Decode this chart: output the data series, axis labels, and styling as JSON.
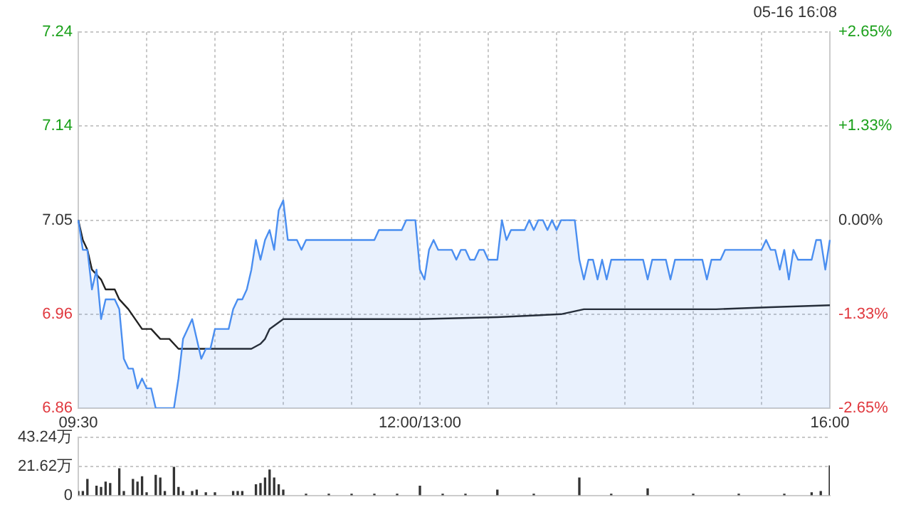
{
  "chart_data": [
    {
      "type": "line",
      "annotations": [
        "05-16 16:08"
      ],
      "categories": [
        "09:30",
        null,
        null,
        null,
        null,
        null,
        null,
        null,
        null,
        null,
        null,
        null,
        null,
        null,
        null,
        null,
        null,
        null,
        null,
        null,
        null,
        null,
        null,
        null,
        null,
        null,
        null,
        null,
        null,
        null,
        null,
        null,
        null,
        null,
        null,
        null,
        null,
        null,
        null,
        null,
        null,
        null,
        null,
        null,
        null,
        null,
        null,
        null,
        null,
        null,
        null,
        null,
        null,
        null,
        null,
        null,
        null,
        null,
        null,
        null,
        null,
        null,
        null,
        null,
        null,
        null,
        null,
        null,
        null,
        null,
        null,
        null,
        null,
        null,
        null,
        "12:00/13:00",
        null,
        null,
        null,
        null,
        null,
        null,
        null,
        null,
        null,
        null,
        null,
        null,
        null,
        null,
        null,
        null,
        null,
        null,
        null,
        null,
        null,
        null,
        null,
        null,
        null,
        null,
        null,
        null,
        null,
        null,
        null,
        null,
        null,
        null,
        null,
        null,
        null,
        null,
        null,
        null,
        null,
        null,
        null,
        null,
        null,
        null,
        null,
        null,
        null,
        null,
        null,
        null,
        null,
        null,
        null,
        null,
        null,
        null,
        null,
        null,
        null,
        null,
        null,
        null,
        null,
        null,
        null,
        null,
        null,
        null,
        null,
        null,
        null,
        null,
        null,
        null,
        null,
        null,
        null,
        null,
        null,
        null,
        null,
        null,
        null,
        null,
        null,
        null,
        null,
        "16:00"
      ],
      "ylim": [
        6.86,
        7.24
      ],
      "yticks": [
        6.86,
        {
          "value": 6.955,
          "label": "6.96"
        },
        7.05,
        {
          "value": 7.145,
          "label": "7.14"
        },
        7.24
      ],
      "y2lim": [
        -2.65,
        2.65
      ],
      "y2ticks": [
        {
          "value": -2.65,
          "label": "-2.65%"
        },
        {
          "value": -1.33,
          "label": "-1.33%"
        },
        {
          "value": 0,
          "label": "0.00%"
        },
        {
          "value": 1.33,
          "label": "+1.33%"
        },
        {
          "value": 2.65,
          "label": "+2.65%"
        }
      ],
      "grid": true,
      "series": [
        {
          "type": "area",
          "color": "#4a8ef0",
          "values": [
            7.05,
            7.02,
            7.02,
            6.98,
            7.0,
            6.95,
            6.97,
            6.97,
            6.97,
            6.96,
            6.91,
            6.9,
            6.9,
            6.88,
            6.89,
            6.88,
            6.88,
            6.86,
            6.86,
            6.86,
            6.86,
            6.86,
            6.89,
            6.93,
            6.94,
            6.95,
            6.93,
            6.91,
            6.92,
            6.92,
            6.94,
            6.94,
            6.94,
            6.94,
            6.96,
            6.97,
            6.97,
            6.98,
            7.0,
            7.03,
            7.01,
            7.03,
            7.04,
            7.02,
            7.06,
            7.07,
            7.03,
            7.03,
            7.03,
            7.02,
            7.03,
            7.03,
            7.03,
            7.03,
            7.03,
            7.03,
            7.03,
            7.03,
            7.03,
            7.03,
            7.03,
            7.03,
            7.03,
            7.03,
            7.03,
            7.03,
            7.04,
            7.04,
            7.04,
            7.04,
            7.04,
            7.04,
            7.05,
            7.05,
            7.05,
            7.0,
            6.99,
            7.02,
            7.03,
            7.02,
            7.02,
            7.02,
            7.02,
            7.01,
            7.02,
            7.02,
            7.01,
            7.01,
            7.02,
            7.02,
            7.01,
            7.01,
            7.01,
            7.05,
            7.03,
            7.04,
            7.04,
            7.04,
            7.04,
            7.05,
            7.04,
            7.05,
            7.05,
            7.04,
            7.05,
            7.04,
            7.05,
            7.05,
            7.05,
            7.05,
            7.01,
            6.99,
            7.01,
            7.01,
            6.99,
            7.01,
            6.99,
            7.01,
            7.01,
            7.01,
            7.01,
            7.01,
            7.01,
            7.01,
            7.01,
            6.99,
            7.01,
            7.01,
            7.01,
            7.01,
            6.99,
            7.01,
            7.01,
            7.01,
            7.01,
            7.01,
            7.01,
            7.01,
            6.99,
            7.01,
            7.01,
            7.01,
            7.02,
            7.02,
            7.02,
            7.02,
            7.02,
            7.02,
            7.02,
            7.02,
            7.02,
            7.03,
            7.02,
            7.02,
            7.0,
            7.02,
            6.99,
            7.02,
            7.01,
            7.01,
            7.01,
            7.01,
            7.03,
            7.03,
            7.0,
            7.03
          ]
        },
        {
          "type": "line",
          "color": "#222222",
          "values": [
            7.05,
            7.03,
            7.02,
            7.0,
            null,
            6.99,
            6.98,
            null,
            6.98,
            6.97,
            null,
            6.96,
            null,
            null,
            6.94,
            null,
            6.94,
            null,
            6.93,
            null,
            6.93,
            null,
            6.92,
            null,
            null,
            6.92,
            null,
            null,
            null,
            null,
            null,
            null,
            null,
            null,
            6.92,
            null,
            null,
            null,
            6.92,
            null,
            6.925,
            6.93,
            6.94,
            null,
            null,
            6.95,
            null,
            null,
            null,
            null,
            null,
            null,
            null,
            null,
            null,
            null,
            null,
            null,
            null,
            null,
            null,
            6.95,
            null,
            null,
            null,
            null,
            null,
            null,
            null,
            null,
            null,
            null,
            null,
            null,
            null,
            6.95,
            null,
            null,
            null,
            null,
            null,
            null,
            null,
            null,
            null,
            null,
            null,
            null,
            null,
            null,
            null,
            null,
            6.952,
            null,
            null,
            null,
            null,
            null,
            null,
            null,
            null,
            null,
            null,
            null,
            null,
            null,
            6.955,
            null,
            null,
            null,
            null,
            6.96,
            null,
            null,
            null,
            null,
            null,
            null,
            null,
            null,
            null,
            null,
            null,
            null,
            null,
            null,
            6.96,
            null,
            null,
            null,
            null,
            null,
            null,
            null,
            null,
            null,
            null,
            null,
            null,
            null,
            6.96,
            null,
            null,
            null,
            null,
            null,
            null,
            null,
            null,
            null,
            null,
            null,
            6.962,
            null,
            null,
            null,
            null,
            null,
            null,
            null,
            null,
            null,
            null,
            null,
            null,
            6.964
          ]
        }
      ]
    },
    {
      "type": "bar",
      "tick_labels": "y",
      "grid": "y",
      "categories": [
        null,
        null,
        null,
        null,
        null,
        null,
        null,
        null,
        null,
        null,
        null,
        null,
        null,
        null,
        null,
        null,
        null,
        null,
        null,
        null,
        null,
        null,
        null,
        null,
        null,
        null,
        null,
        null,
        null,
        null,
        null,
        null,
        null,
        null,
        null,
        null,
        null,
        null,
        null,
        null,
        null,
        null,
        null,
        null,
        null,
        null,
        null,
        null,
        null,
        null,
        null,
        null,
        null,
        null,
        null,
        null,
        null,
        null,
        null,
        null,
        null,
        null,
        null,
        null,
        null,
        null,
        null,
        null,
        null,
        null,
        null,
        null,
        null,
        null,
        null,
        null,
        null,
        null,
        null,
        null,
        null,
        null,
        null,
        null,
        null,
        null,
        null,
        null,
        null,
        null,
        null,
        null,
        null,
        null,
        null,
        null,
        null,
        null,
        null,
        null,
        null,
        null,
        null,
        null,
        null,
        null,
        null,
        null,
        null,
        null,
        null,
        null,
        null,
        null,
        null,
        null,
        null,
        null,
        null,
        null,
        null,
        null,
        null,
        null,
        null,
        null,
        null,
        null,
        null,
        null,
        null,
        null,
        null,
        null,
        null,
        null,
        null,
        null,
        null,
        null,
        null,
        null,
        null,
        null,
        null,
        null,
        null,
        null,
        null,
        null,
        null,
        null,
        null,
        null,
        null,
        null,
        null,
        null,
        null,
        null,
        null,
        null,
        null,
        null,
        null,
        null
      ],
      "ylim": [
        0,
        43.24
      ],
      "yticks": [
        0,
        {
          "value": 21.62,
          "label": "21.62万"
        },
        {
          "value": 43.24,
          "label": "43.24万"
        }
      ],
      "series": [
        {
          "color": "#333333",
          "values": [
            3,
            3,
            12,
            null,
            7,
            6,
            10,
            9,
            null,
            20,
            3,
            null,
            12,
            10,
            14,
            2,
            null,
            15,
            13,
            3,
            null,
            21,
            6,
            3,
            null,
            3,
            4,
            null,
            2,
            null,
            2,
            null,
            null,
            null,
            3,
            3,
            3,
            null,
            null,
            8,
            9,
            13,
            19,
            13,
            8,
            4,
            null,
            null,
            null,
            null,
            1,
            null,
            null,
            null,
            null,
            1,
            null,
            null,
            null,
            null,
            1,
            null,
            null,
            null,
            null,
            1,
            null,
            null,
            null,
            null,
            1,
            null,
            null,
            null,
            null,
            7,
            null,
            null,
            null,
            null,
            1,
            null,
            null,
            null,
            null,
            1,
            null,
            null,
            null,
            null,
            null,
            null,
            4,
            null,
            null,
            null,
            null,
            null,
            null,
            null,
            1,
            null,
            null,
            null,
            null,
            null,
            null,
            null,
            null,
            null,
            13,
            null,
            null,
            null,
            null,
            null,
            null,
            1,
            null,
            null,
            null,
            null,
            null,
            null,
            null,
            5,
            null,
            null,
            null,
            null,
            null,
            null,
            null,
            null,
            null,
            1,
            null,
            null,
            null,
            null,
            null,
            null,
            null,
            null,
            null,
            1,
            null,
            null,
            null,
            null,
            null,
            null,
            null,
            null,
            null,
            1,
            null,
            null,
            null,
            null,
            null,
            2,
            null,
            3,
            null,
            22
          ]
        }
      ]
    }
  ]
}
